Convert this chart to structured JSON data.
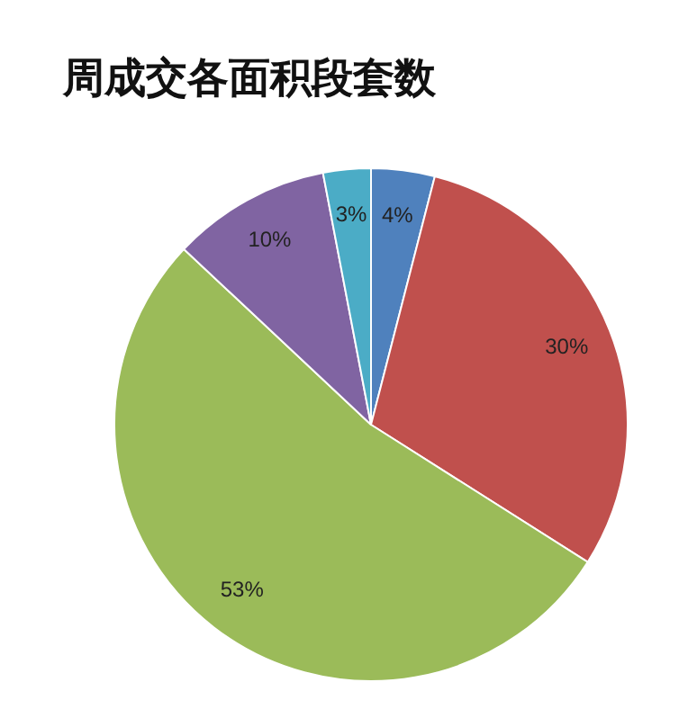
{
  "chart_data": {
    "type": "pie",
    "title": "周成交各面积段套数",
    "categories": [
      null,
      null,
      null,
      null,
      null
    ],
    "values": [
      4,
      30,
      53,
      10,
      3
    ],
    "value_labels": [
      "4%",
      "30%",
      "53%",
      "10%",
      "3%"
    ],
    "colors": [
      "#4f81bd",
      "#c0504d",
      "#9bbb59",
      "#8064a2",
      "#4bacc6"
    ],
    "legend": false
  }
}
